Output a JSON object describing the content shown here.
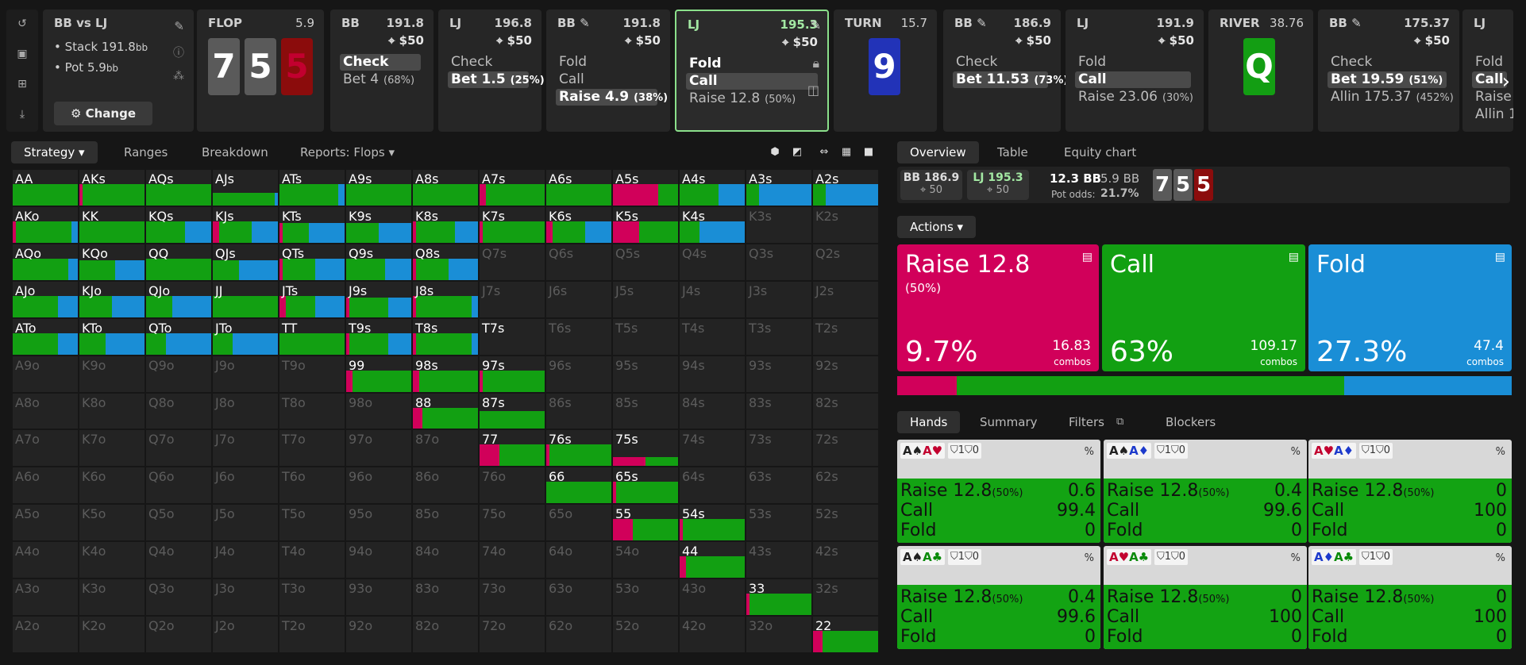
{
  "info": {
    "title": "BB vs LJ",
    "stack_line": "• Stack 191.8",
    "stack_unit": "bb",
    "pot_line": "• Pot 5.9",
    "pot_unit": "bb",
    "change_label": "⚙ Change"
  },
  "streets": {
    "flop": {
      "label": "FLOP",
      "pot": "5.9",
      "cards": [
        "7",
        "5",
        "5"
      ]
    },
    "turn": {
      "label": "TURN",
      "pot": "15.7",
      "card": "9"
    },
    "river": {
      "label": "RIVER",
      "pot": "38.76",
      "card": "Q"
    }
  },
  "panels": [
    {
      "player": "BB",
      "stack": "191.8",
      "bet": "⌖ $50",
      "actions": [
        {
          "t": "Check",
          "on": true
        },
        {
          "t": "Bet 4",
          "p": "(68%)"
        }
      ]
    },
    {
      "player": "LJ",
      "stack": "196.8",
      "bet": "⌖ $50",
      "actions": [
        {
          "t": "Check"
        },
        {
          "t": "Bet 1.5",
          "p": "(25%)",
          "on": true
        }
      ]
    },
    {
      "player": "BB ✎",
      "stack": "191.8",
      "bet": "⌖ $50",
      "actions": [
        {
          "t": "Fold"
        },
        {
          "t": "Call"
        },
        {
          "t": "Raise 4.9",
          "p": "(38%)",
          "on": true
        }
      ]
    },
    {
      "player": "LJ",
      "stack": "195.3",
      "bet": "⌖ $50",
      "actions": [
        {
          "t": "Fold",
          "bold": true
        },
        {
          "t": "Call",
          "on": true
        },
        {
          "t": "Raise 12.8",
          "p": "(50%)"
        }
      ]
    },
    {
      "player": "BB ✎",
      "stack": "186.9",
      "bet": "⌖ $50",
      "actions": [
        {
          "t": "Check"
        },
        {
          "t": "Bet 11.53",
          "p": "(73%)",
          "on": true
        }
      ]
    },
    {
      "player": "LJ",
      "stack": "191.9",
      "bet": "⌖ $50",
      "actions": [
        {
          "t": "Fold"
        },
        {
          "t": "Call",
          "on": true
        },
        {
          "t": "Raise 23.06",
          "p": "(30%)"
        }
      ]
    },
    {
      "player": "BB ✎",
      "stack": "175.37",
      "bet": "⌖ $50",
      "actions": [
        {
          "t": "Check"
        },
        {
          "t": "Bet 19.59",
          "p": "(51%)",
          "on": true
        },
        {
          "t": "Allin 175.37",
          "p": "(452%)"
        }
      ]
    },
    {
      "player": "LJ",
      "stack": "",
      "bet": "",
      "actions": [
        {
          "t": "Fold"
        },
        {
          "t": "Call",
          "on": true
        },
        {
          "t": "Raise"
        },
        {
          "t": "Allin 1"
        }
      ]
    }
  ],
  "left_tabs": {
    "strategy": "Strategy ▾",
    "ranges": "Ranges",
    "breakdown": "Breakdown",
    "reports": "Reports: Flops ▾"
  },
  "right_tabs": {
    "overview": "Overview",
    "table": "Table",
    "equity": "Equity chart"
  },
  "summary": {
    "bb": "BB 186.9",
    "bb_sub": "⌖ 50",
    "lj": "LJ 195.3",
    "lj_sub": "⌖ 50",
    "pot": "12.3 BB",
    "pot_bb": "5.9 BB",
    "odds_label": "Pot odds:",
    "odds": "21.7%",
    "board": [
      "7",
      "5",
      "5"
    ]
  },
  "actions_label": "Actions ▾",
  "big": [
    {
      "name": "Raise 12.8",
      "sub": "(50%)",
      "pct": "9.7%",
      "combos": "16.83",
      "unit": "combos",
      "color": "#d1005a"
    },
    {
      "name": "Call",
      "sub": "",
      "pct": "63%",
      "combos": "109.17",
      "unit": "combos",
      "color": "#12a012"
    },
    {
      "name": "Fold",
      "sub": "",
      "pct": "27.3%",
      "combos": "47.4",
      "unit": "combos",
      "color": "#1a8ed6"
    }
  ],
  "freq": {
    "raise": 0.097,
    "call": 0.63,
    "fold": 0.273
  },
  "hand_tabs": {
    "hands": "Hands",
    "summary": "Summary",
    "filters": "Filters",
    "blockers": "Blockers"
  },
  "hands": [
    {
      "cards": [
        [
          "A",
          "♠",
          "blk"
        ],
        [
          "A",
          "♥",
          "red"
        ]
      ],
      "blk": "⛉1⛉0",
      "raise": "0.6",
      "call": "99.4",
      "fold": "0"
    },
    {
      "cards": [
        [
          "A",
          "♠",
          "blk"
        ],
        [
          "A",
          "♦",
          "blu"
        ]
      ],
      "blk": "⛉1⛉0",
      "raise": "0.4",
      "call": "99.6",
      "fold": "0"
    },
    {
      "cards": [
        [
          "A",
          "♥",
          "red"
        ],
        [
          "A",
          "♦",
          "blu"
        ]
      ],
      "blk": "⛉1⛉0",
      "raise": "0",
      "call": "100",
      "fold": "0"
    },
    {
      "cards": [
        [
          "A",
          "♠",
          "blk"
        ],
        [
          "A",
          "♣",
          "grn"
        ]
      ],
      "blk": "⛉1⛉0",
      "raise": "0.4",
      "call": "99.6",
      "fold": "0"
    },
    {
      "cards": [
        [
          "A",
          "♥",
          "red"
        ],
        [
          "A",
          "♣",
          "grn"
        ]
      ],
      "blk": "⛉1⛉0",
      "raise": "0",
      "call": "100",
      "fold": "0"
    },
    {
      "cards": [
        [
          "A",
          "♦",
          "blu"
        ],
        [
          "A",
          "♣",
          "grn"
        ]
      ],
      "blk": "⛉1⛉0",
      "raise": "0",
      "call": "100",
      "fold": "0"
    }
  ],
  "hand_rows": {
    "raise": "Raise 12.8",
    "raise_p": "(50%)",
    "call": "Call",
    "fold": "Fold",
    "pct": "%"
  },
  "matrix": {
    "ranks": [
      "A",
      "K",
      "Q",
      "J",
      "T",
      "9",
      "8",
      "7",
      "6",
      "5",
      "4",
      "3",
      "2"
    ],
    "active": {
      "AA": [
        0,
        1,
        0
      ],
      "AKs": [
        0.05,
        0.95,
        0
      ],
      "AQs": [
        0,
        1,
        0
      ],
      "AJs": [
        0,
        0.95,
        0.05
      ],
      "ATs": [
        0,
        0.9,
        0.1
      ],
      "A9s": [
        0,
        1,
        0
      ],
      "A8s": [
        0,
        1,
        0
      ],
      "A7s": [
        0.1,
        0.9,
        0
      ],
      "A6s": [
        0,
        1,
        0
      ],
      "A5s": [
        0.7,
        0.3,
        0
      ],
      "A4s": [
        0,
        0.6,
        0.4
      ],
      "A3s": [
        0,
        0.2,
        0.8
      ],
      "A2s": [
        0,
        0.2,
        0.8
      ],
      "AKo": [
        0.05,
        0.85,
        0.1
      ],
      "KK": [
        0,
        1,
        0
      ],
      "KQs": [
        0,
        0.6,
        0.4
      ],
      "KJs": [
        0.1,
        0.5,
        0.4
      ],
      "KTs": [
        0.05,
        0.4,
        0.55
      ],
      "K9s": [
        0,
        0.5,
        0.5
      ],
      "K8s": [
        0.05,
        0.6,
        0.35
      ],
      "K7s": [
        0.05,
        0.95,
        0
      ],
      "K6s": [
        0.1,
        0.5,
        0.4
      ],
      "K5s": [
        0.4,
        0.6,
        0
      ],
      "K4s": [
        0,
        0.3,
        0.7
      ],
      "AQo": [
        0,
        0.85,
        0.15
      ],
      "KQo": [
        0,
        0.55,
        0.45
      ],
      "QQ": [
        0,
        1,
        0
      ],
      "QJs": [
        0,
        0.4,
        0.6
      ],
      "QTs": [
        0.05,
        0.5,
        0.45
      ],
      "Q9s": [
        0,
        0.6,
        0.4
      ],
      "Q8s": [
        0.05,
        0.5,
        0.45
      ],
      "AJo": [
        0,
        0.7,
        0.3
      ],
      "KJo": [
        0,
        0.5,
        0.5
      ],
      "QJo": [
        0,
        0.4,
        0.6
      ],
      "JJ": [
        0,
        1,
        0
      ],
      "JTs": [
        0.1,
        0.45,
        0.45
      ],
      "J9s": [
        0.05,
        0.6,
        0.35
      ],
      "J8s": [
        0.05,
        0.85,
        0.1
      ],
      "ATo": [
        0,
        0.7,
        0.3
      ],
      "KTo": [
        0,
        0.4,
        0.6
      ],
      "QTo": [
        0,
        0.3,
        0.7
      ],
      "JTo": [
        0,
        0.3,
        0.7
      ],
      "TT": [
        0,
        1,
        0
      ],
      "T9s": [
        0.05,
        0.6,
        0.35
      ],
      "T8s": [
        0.05,
        0.85,
        0.1
      ],
      "T7s": [
        0,
        0,
        0
      ],
      "99": [
        0.1,
        0.9,
        0
      ],
      "98s": [
        0.1,
        0.9,
        0
      ],
      "97s": [
        0.05,
        0.95,
        0
      ],
      "88": [
        0.15,
        0.85,
        0
      ],
      "87s": [
        0,
        1,
        0
      ],
      "77": [
        0.3,
        0.7,
        0
      ],
      "76s": [
        0.05,
        0.95,
        0
      ],
      "75s": [
        0.5,
        0.5,
        0
      ],
      "66": [
        0,
        1,
        0
      ],
      "65s": [
        0.05,
        0.95,
        0
      ],
      "55": [
        0.3,
        0.7,
        0
      ],
      "54s": [
        0.05,
        0.95,
        0
      ],
      "44": [
        0.1,
        0.9,
        0
      ],
      "33": [
        0.05,
        0.95,
        0
      ],
      "22": [
        0.15,
        0.85,
        0
      ]
    },
    "bar_heights": {
      "T7s": 0.05,
      "75s": 0.25,
      "87s": 0.5,
      "AJs": 0.35,
      "KTs": 0.55,
      "K9s": 0.55,
      "QJs": 0.55,
      "KQo": 0.55,
      "AQs": 0.6,
      "J9s": 0.55
    }
  }
}
